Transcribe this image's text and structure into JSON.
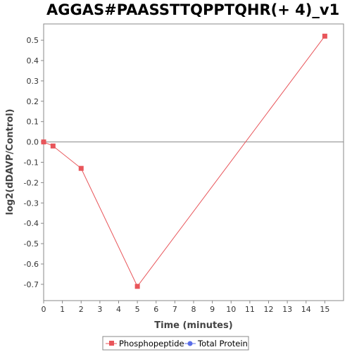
{
  "chart_data": {
    "type": "line",
    "title": "AGGAS#PAASSTTQPPTQHR(+ 4)_v1",
    "xlabel": "Time (minutes)",
    "ylabel": "log2(dDAVP/Control)",
    "xlim": [
      0,
      16
    ],
    "ylim": [
      -0.78,
      0.58
    ],
    "x_ticks": [
      0,
      1,
      2,
      3,
      4,
      5,
      6,
      7,
      8,
      9,
      10,
      11,
      12,
      13,
      14,
      15
    ],
    "y_ticks": [
      0.5,
      0.4,
      0.3,
      0.2,
      0.1,
      0.0,
      -0.1,
      -0.2,
      -0.3,
      -0.4,
      -0.5,
      -0.6,
      -0.7
    ],
    "y_tick_labels": [
      "0.5",
      "0.4",
      "0.3",
      "0.2",
      "0.1",
      "0.0",
      "-0.1",
      "-0.2",
      "-0.3",
      "-0.4",
      "-0.5",
      "-0.6",
      "-0.7"
    ],
    "grid": false,
    "zero_line": true,
    "legend_position": "bottom",
    "series": [
      {
        "name": "Phosphopeptide",
        "color": "#e8555a",
        "marker": "square",
        "x": [
          0,
          0.5,
          2,
          5,
          15
        ],
        "y": [
          0.0,
          -0.02,
          -0.13,
          -0.71,
          0.52
        ]
      },
      {
        "name": "Total Protein",
        "color": "#5a6ee8",
        "marker": "circle",
        "x": [],
        "y": []
      }
    ]
  }
}
